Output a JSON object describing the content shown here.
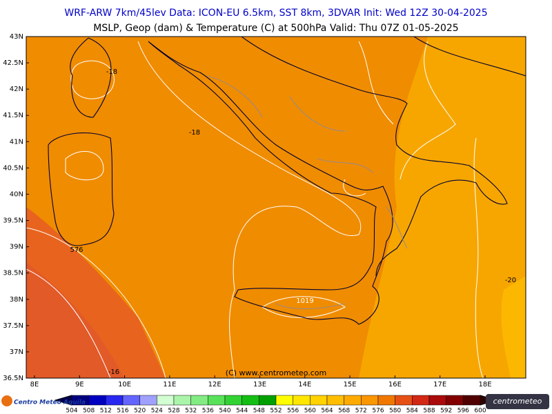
{
  "header": {
    "line1": "WRF-ARW 7km/45lev   Data: ICON-EU 6.5km, SST 8km, 3DVAR   Init: Wed 12Z 30-04-2025",
    "line2": "MSLP, Geop (dam) & Temperature (C) at 500hPa  Valid: Thu 07Z 01-05-2025"
  },
  "lat_labels": [
    "43N",
    "42.5N",
    "42N",
    "41.5N",
    "41N",
    "40.5N",
    "40N",
    "39.5N",
    "39N",
    "38.5N",
    "38N",
    "37.5N",
    "37N",
    "36.5N"
  ],
  "lon_labels": [
    "8E",
    "9E",
    "10E",
    "11E",
    "12E",
    "13E",
    "14E",
    "15E",
    "16E",
    "17E",
    "18E"
  ],
  "contour_labels": [
    "-18",
    "-18",
    "576",
    "-20",
    "1019",
    "-16"
  ],
  "copyright": "(C) www.centrometeo.com",
  "colorbar": {
    "labels": [
      "504",
      "508",
      "512",
      "516",
      "520",
      "524",
      "528",
      "532",
      "536",
      "540",
      "544",
      "548",
      "552",
      "556",
      "560",
      "564",
      "568",
      "572",
      "576",
      "580",
      "584",
      "588",
      "592",
      "596",
      "600"
    ],
    "colors": [
      "#00007f",
      "#0000c0",
      "#2828f0",
      "#6464ff",
      "#a0a0ff",
      "#d2ffd2",
      "#aaf5aa",
      "#82eb82",
      "#5ae15a",
      "#32d232",
      "#14be14",
      "#00a000",
      "#ffff00",
      "#ffe600",
      "#ffd200",
      "#ffbe00",
      "#ffaa00",
      "#fa9600",
      "#f07800",
      "#e65014",
      "#d22814",
      "#aa0a0a",
      "#820000",
      "#500000"
    ]
  },
  "logos": {
    "left": "Centro Meteo Aquila",
    "right": "centrometeo"
  }
}
